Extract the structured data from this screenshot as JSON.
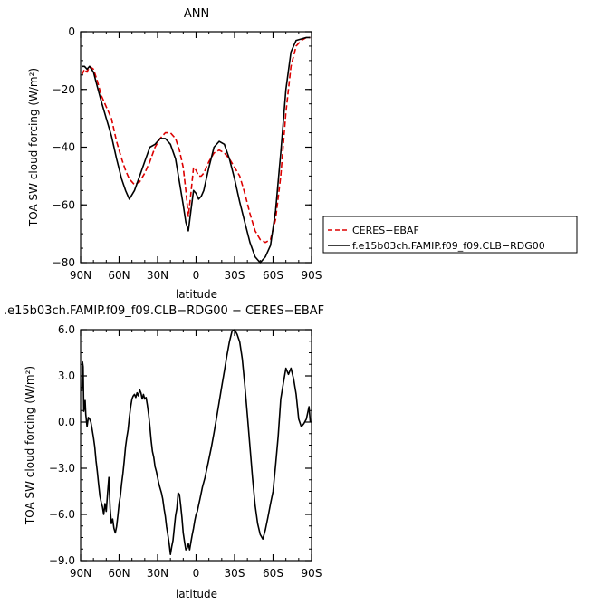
{
  "chart_data": [
    {
      "type": "line",
      "title": "ANN",
      "xlabel": "latitude",
      "ylabel": "TOA SW cloud forcing (W/m²)",
      "xlim": [
        90,
        -90
      ],
      "ylim": [
        -80,
        0
      ],
      "x_ticks": [
        "90N",
        "60N",
        "30N",
        "0",
        "30S",
        "60S",
        "90S"
      ],
      "y_ticks": [
        "0",
        "−20",
        "−40",
        "−60",
        "−80"
      ],
      "y_tick_values": [
        0,
        -20,
        -40,
        -60,
        -80
      ],
      "legend": {
        "position": "right",
        "entries": [
          {
            "label": "CERES−EBAF",
            "color": "#dd0000",
            "style": "dashed"
          },
          {
            "label": "f.e15b03ch.FAMIP.f09_f09.CLB−RDG00",
            "color": "#000000",
            "style": "solid"
          }
        ]
      },
      "series": [
        {
          "name": "CERES−EBAF",
          "color": "#dd0000",
          "style": "dashed",
          "x": [
            89,
            87,
            85,
            83,
            80,
            77,
            74,
            70,
            66,
            62,
            58,
            55,
            52,
            48,
            44,
            40,
            36,
            32,
            28,
            24,
            20,
            16,
            13,
            10,
            8,
            6,
            4,
            2,
            0,
            -2,
            -4,
            -6,
            -8,
            -10,
            -14,
            -18,
            -22,
            -26,
            -30,
            -34,
            -38,
            -42,
            -46,
            -50,
            -54,
            -58,
            -62,
            -66,
            -70,
            -74,
            -78,
            -82,
            -86,
            -89
          ],
          "y": [
            -15,
            -13,
            -14,
            -12,
            -13,
            -17,
            -22,
            -26,
            -30,
            -38,
            -44,
            -48,
            -51,
            -53,
            -52,
            -49,
            -45,
            -40,
            -37,
            -35,
            -35,
            -37,
            -41,
            -47,
            -55,
            -64,
            -56,
            -47,
            -48,
            -50,
            -50,
            -49,
            -47,
            -45,
            -42,
            -41,
            -42,
            -44,
            -47,
            -50,
            -56,
            -63,
            -69,
            -72,
            -73,
            -72,
            -65,
            -50,
            -28,
            -12,
            -5,
            -3,
            -2,
            -2
          ]
        },
        {
          "name": "f.e15b03ch.FAMIP.f09_f09.CLB−RDG00",
          "color": "#000000",
          "style": "solid",
          "x": [
            89,
            87,
            85,
            83,
            80,
            77,
            74,
            70,
            66,
            62,
            58,
            55,
            52,
            48,
            44,
            40,
            36,
            32,
            28,
            24,
            20,
            16,
            13,
            10,
            8,
            6,
            4,
            2,
            0,
            -2,
            -4,
            -6,
            -8,
            -10,
            -14,
            -18,
            -22,
            -26,
            -30,
            -34,
            -38,
            -42,
            -46,
            -50,
            -54,
            -58,
            -62,
            -66,
            -70,
            -74,
            -78,
            -82,
            -86,
            -89
          ],
          "y": [
            -12,
            -12,
            -13,
            -12,
            -14,
            -19,
            -24,
            -30,
            -36,
            -44,
            -51,
            -55,
            -58,
            -55,
            -50,
            -45,
            -40,
            -39,
            -37,
            -37,
            -39,
            -44,
            -52,
            -60,
            -66,
            -69,
            -62,
            -55,
            -56,
            -58,
            -57,
            -55,
            -51,
            -47,
            -40,
            -38,
            -39,
            -44,
            -51,
            -59,
            -66,
            -73,
            -78,
            -80,
            -78,
            -74,
            -62,
            -42,
            -20,
            -7,
            -3,
            -2.5,
            -2,
            -2
          ]
        }
      ]
    },
    {
      "type": "line",
      "title": ".e15b03ch.FAMIP.f09_f09.CLB−RDG00 − CERES−EBAF",
      "xlabel": "latitude",
      "ylabel": "TOA SW cloud forcing (W/m²)",
      "xlim": [
        90,
        -90
      ],
      "ylim": [
        -9,
        6
      ],
      "x_ticks": [
        "90N",
        "60N",
        "30N",
        "0",
        "30S",
        "60S",
        "90S"
      ],
      "y_ticks": [
        "6.0",
        "3.0",
        "0.0",
        "−3.0",
        "−6.0",
        "−9.0"
      ],
      "y_tick_values": [
        6,
        3,
        0,
        -3,
        -6,
        -9
      ],
      "series": [
        {
          "color": "#000000",
          "style": "solid",
          "x": [
            89,
            88.5,
            88,
            87.5,
            87,
            86.5,
            86,
            85,
            84,
            83,
            82,
            81,
            80,
            79,
            78,
            77,
            76,
            75,
            74,
            73,
            72,
            71,
            70,
            69,
            68,
            67,
            66,
            65,
            64,
            63,
            62,
            61,
            60,
            59,
            58,
            57,
            56,
            55,
            54,
            53,
            52,
            51,
            50,
            49,
            48,
            47,
            46,
            45,
            44,
            43,
            42,
            41,
            40,
            39,
            38,
            37,
            36,
            35,
            34,
            33,
            32,
            31,
            30,
            29,
            28,
            27,
            26,
            25,
            24,
            23,
            22,
            21,
            20,
            19,
            18,
            17,
            16,
            15,
            14,
            13,
            12,
            11,
            10,
            9,
            8,
            7,
            6,
            5,
            4,
            3,
            2,
            1,
            0,
            -1,
            -2,
            -3,
            -4,
            -5,
            -6,
            -7,
            -8,
            -9,
            -10,
            -12,
            -14,
            -16,
            -18,
            -20,
            -22,
            -24,
            -26,
            -28,
            -30,
            -32,
            -34,
            -36,
            -38,
            -40,
            -42,
            -44,
            -46,
            -48,
            -50,
            -52,
            -54,
            -56,
            -58,
            -60,
            -62,
            -64,
            -66,
            -68,
            -70,
            -72,
            -74,
            -76,
            -78,
            -80,
            -82,
            -84,
            -86,
            -88,
            -89
          ],
          "y": [
            2.0,
            3.9,
            3.6,
            0.7,
            1.0,
            1.4,
            0.5,
            -0.3,
            0.3,
            0.2,
            0.0,
            -0.5,
            -1.0,
            -1.6,
            -2.5,
            -3.2,
            -4.0,
            -4.8,
            -5.2,
            -5.5,
            -6.0,
            -5.3,
            -5.8,
            -4.6,
            -3.6,
            -5.6,
            -6.6,
            -6.3,
            -6.9,
            -7.2,
            -6.8,
            -6.1,
            -5.3,
            -4.8,
            -4.0,
            -3.3,
            -2.5,
            -1.6,
            -1.0,
            -0.5,
            0.3,
            1.0,
            1.5,
            1.7,
            1.8,
            1.6,
            1.9,
            1.7,
            2.1,
            1.9,
            1.5,
            1.8,
            1.5,
            1.6,
            1.1,
            0.5,
            -0.3,
            -1.2,
            -1.9,
            -2.3,
            -2.9,
            -3.2,
            -3.6,
            -4.0,
            -4.3,
            -4.6,
            -5.0,
            -5.6,
            -6.1,
            -6.8,
            -7.3,
            -7.9,
            -8.6,
            -8.1,
            -7.7,
            -6.9,
            -6.1,
            -5.6,
            -4.6,
            -4.7,
            -5.4,
            -6.2,
            -7.2,
            -7.8,
            -8.3,
            -8.2,
            -7.9,
            -8.3,
            -7.8,
            -7.3,
            -6.9,
            -6.4,
            -6.0,
            -5.8,
            -5.4,
            -5.0,
            -4.6,
            -4.2,
            -3.9,
            -3.6,
            -3.2,
            -2.8,
            -2.4,
            -1.6,
            -0.7,
            0.3,
            1.3,
            2.3,
            3.3,
            4.3,
            5.2,
            5.9,
            6.0,
            5.7,
            5.2,
            4.1,
            2.4,
            0.4,
            -1.6,
            -3.6,
            -5.4,
            -6.6,
            -7.3,
            -7.6,
            -7.0,
            -6.2,
            -5.3,
            -4.5,
            -2.8,
            -0.9,
            1.5,
            2.5,
            3.5,
            3.1,
            3.5,
            2.8,
            1.8,
            0.2,
            -0.3,
            -0.1,
            0.2,
            1.0,
            0.0
          ]
        }
      ]
    }
  ]
}
